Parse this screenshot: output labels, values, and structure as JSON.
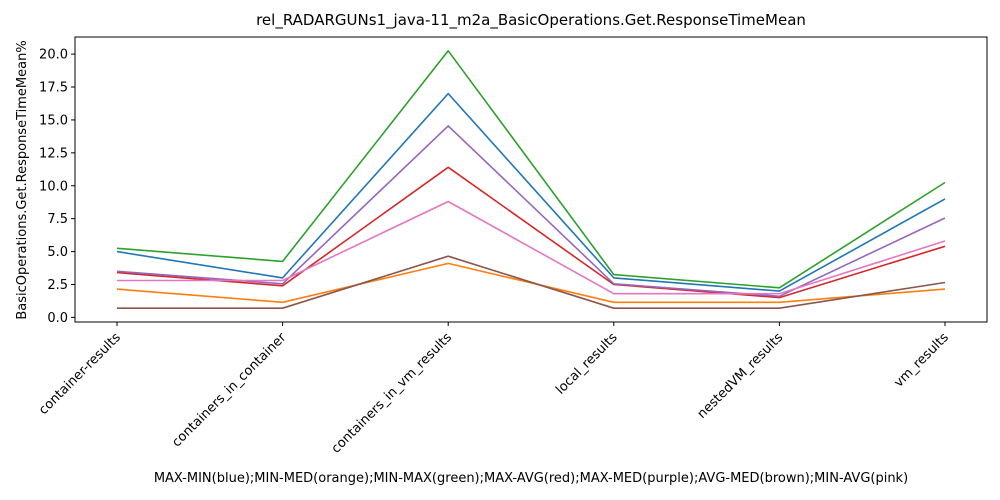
{
  "chart_data": {
    "type": "line",
    "title": "rel_RADARGUNs1_java-11_m2a_BasicOperations.Get.ResponseTimeMean",
    "xlabel": "MAX-MIN(blue);MIN-MED(orange);MIN-MAX(green);MAX-AVG(red);MAX-MED(purple);AVG-MED(brown);MIN-AVG(pink)",
    "ylabel": "BasicOperations.Get.ResponseTimeMean%",
    "categories": [
      "container-results",
      "containers_in_container",
      "containers_in_vm_results",
      "local_results",
      "nestedVM_results",
      "vm_results"
    ],
    "ylim": [
      -0.35,
      21.3
    ],
    "yticks": [
      "0.0",
      "2.5",
      "5.0",
      "7.5",
      "10.0",
      "12.5",
      "15.0",
      "17.5",
      "20.0"
    ],
    "series": [
      {
        "name": "MAX-MIN",
        "color": "#1f77b4",
        "values": [
          5.0,
          3.0,
          17.0,
          3.0,
          2.0,
          9.0
        ]
      },
      {
        "name": "MIN-MED",
        "color": "#ff7f0e",
        "values": [
          2.15,
          1.15,
          4.1,
          1.15,
          1.15,
          2.15
        ]
      },
      {
        "name": "MIN-MAX",
        "color": "#2ca02c",
        "values": [
          5.25,
          4.25,
          20.25,
          3.25,
          2.25,
          10.25
        ]
      },
      {
        "name": "MAX-AVG",
        "color": "#d62728",
        "values": [
          3.4,
          2.4,
          11.4,
          2.5,
          1.5,
          5.4
        ]
      },
      {
        "name": "MAX-MED",
        "color": "#9467bd",
        "values": [
          3.5,
          2.55,
          14.55,
          2.55,
          1.6,
          7.55
        ]
      },
      {
        "name": "AVG-MED",
        "color": "#8c564b",
        "values": [
          0.7,
          0.7,
          4.65,
          0.7,
          0.7,
          2.65
        ]
      },
      {
        "name": "MIN-AVG",
        "color": "#e377c2",
        "values": [
          2.8,
          2.8,
          8.8,
          1.8,
          1.8,
          5.8
        ]
      }
    ]
  }
}
